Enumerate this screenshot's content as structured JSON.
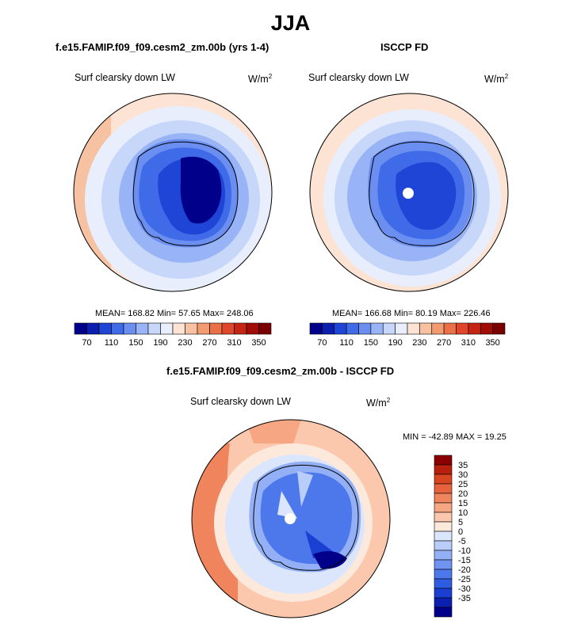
{
  "main_title": "JJA",
  "colors": {
    "abs_scale": [
      "#00008b",
      "#0a1fb0",
      "#1f45d6",
      "#3f6ae8",
      "#6a8ff0",
      "#98b4f6",
      "#c6d7fa",
      "#e8eefc",
      "#fde3d3",
      "#f7c2a2",
      "#f29a70",
      "#ec7047",
      "#e0462a",
      "#c52513",
      "#a10c06",
      "#7a0000"
    ],
    "diff_scale": [
      "#00008b",
      "#0b1fb0",
      "#1b3fd2",
      "#2f5de2",
      "#4d78ec",
      "#6f93f1",
      "#93b0f6",
      "#b8cdf9",
      "#dbe6fc",
      "#fde8dc",
      "#fbc8ad",
      "#f6a683",
      "#f0845d",
      "#e8633d",
      "#d94421",
      "#b81f0c",
      "#8b0000"
    ]
  },
  "panels": [
    {
      "id": "model",
      "title": "f.e15.FAMIP.f09_f09.cesm2_zm.00b (yrs 1-4)",
      "var_label": "Surf clearsky down LW",
      "units": "W/m",
      "units_sup": "2",
      "stats": "MEAN= 168.82  Min=  57.65  Max= 248.06",
      "colorbar_ticks": [
        "70",
        "110",
        "150",
        "190",
        "230",
        "270",
        "310",
        "350"
      ]
    },
    {
      "id": "obs",
      "title": "ISCCP FD",
      "var_label": "Surf clearsky down LW",
      "units": "W/m",
      "units_sup": "2",
      "stats": "MEAN= 166.68  Min=  80.19  Max= 226.46",
      "colorbar_ticks": [
        "70",
        "110",
        "150",
        "190",
        "230",
        "270",
        "310",
        "350"
      ]
    }
  ],
  "diff": {
    "title": "f.e15.FAMIP.f09_f09.cesm2_zm.00b - ISCCP FD",
    "var_label": "Surf clearsky down LW",
    "units": "W/m",
    "units_sup": "2",
    "stats": "MIN = -42.89 MAX =  19.25",
    "colorbar_ticks": [
      "35",
      "30",
      "25",
      "20",
      "15",
      "10",
      "5",
      "0",
      "-5",
      "-10",
      "-15",
      "-20",
      "-25",
      "-30",
      "-35"
    ]
  }
}
